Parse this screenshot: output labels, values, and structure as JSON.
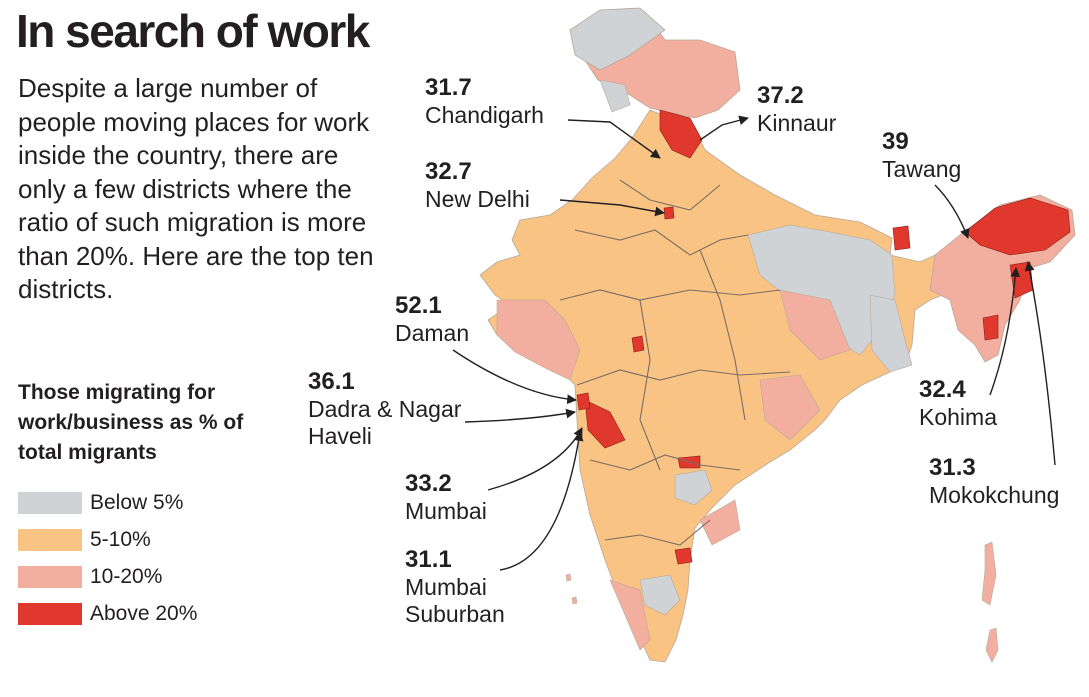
{
  "title": "In search of work",
  "intro": "Despite a large number of people moving places for work inside the country, there are only a few districts where the ratio of such migration is more than 20%. Here are the top ten districts.",
  "legend": {
    "title": "Those migrating for work/business as % of total migrants",
    "items": [
      {
        "label": "Below 5%",
        "color": "#cfd3d6"
      },
      {
        "label": "5-10%",
        "color": "#f9c383"
      },
      {
        "label": "10-20%",
        "color": "#f2ae9e"
      },
      {
        "label": "Above 20%",
        "color": "#e0382d"
      }
    ]
  },
  "districts": [
    {
      "value": "31.7",
      "name": "Chandigarh"
    },
    {
      "value": "37.2",
      "name": "Kinnaur"
    },
    {
      "value": "39",
      "name": "Tawang"
    },
    {
      "value": "32.7",
      "name": "New Delhi"
    },
    {
      "value": "52.1",
      "name": "Daman"
    },
    {
      "value": "36.1",
      "name": "Dadra & Nagar Haveli"
    },
    {
      "value": "32.4",
      "name": "Kohima"
    },
    {
      "value": "31.3",
      "name": "Mokokchung"
    },
    {
      "value": "33.2",
      "name": "Mumbai"
    },
    {
      "value": "31.1",
      "name": "Mumbai Suburban"
    }
  ]
}
